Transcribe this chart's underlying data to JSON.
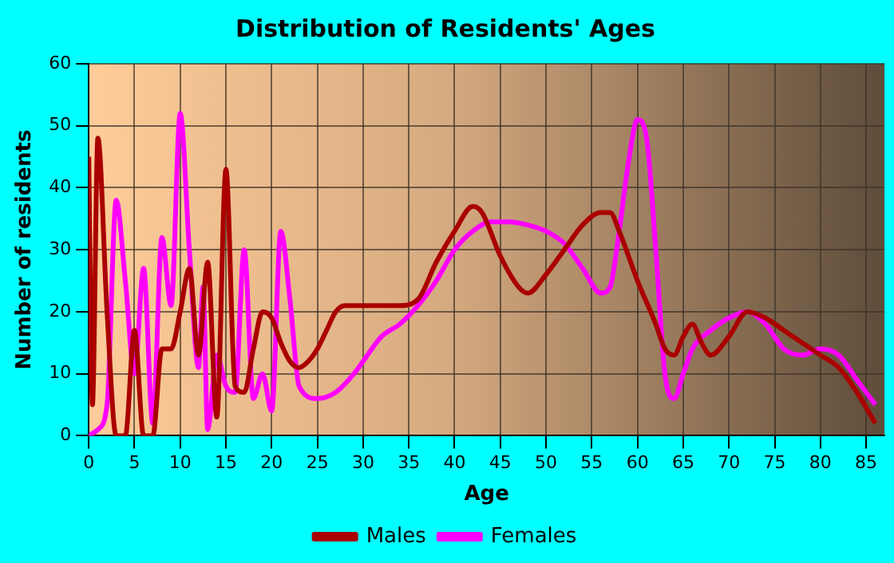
{
  "chart_data": {
    "type": "line",
    "title": "Distribution of Residents' Ages",
    "xlabel": "Age",
    "ylabel": "Number of residents",
    "xlim": [
      0,
      87
    ],
    "ylim": [
      0,
      60
    ],
    "xticks": [
      0,
      5,
      10,
      15,
      20,
      25,
      30,
      35,
      40,
      45,
      50,
      55,
      60,
      65,
      70,
      75,
      80,
      85
    ],
    "yticks": [
      0,
      10,
      20,
      30,
      40,
      50,
      60
    ],
    "grid": true,
    "legend": "bottom",
    "series": [
      {
        "name": "Males",
        "color": "#aa0000",
        "x": [
          0,
          0.4,
          1,
          2,
          3,
          4,
          5,
          6,
          7,
          8,
          9,
          10,
          11,
          12,
          13,
          14,
          15,
          16,
          17,
          18,
          19,
          20,
          21,
          22,
          23,
          24,
          25,
          26,
          27,
          28,
          30,
          34,
          36,
          38,
          40,
          42,
          43,
          45,
          47,
          48,
          50,
          52,
          54,
          56,
          57,
          58,
          60,
          62,
          63,
          64,
          65,
          66,
          67,
          68,
          70,
          72,
          74,
          76,
          78,
          80,
          82,
          84,
          86
        ],
        "values": [
          45,
          5,
          48,
          20,
          0,
          0,
          17,
          0,
          0,
          14,
          14,
          20,
          27,
          13,
          28,
          3,
          43,
          8,
          7,
          14,
          20,
          19,
          15,
          12,
          11,
          12,
          14,
          17,
          20,
          21,
          21,
          21,
          22,
          28,
          33,
          37,
          36,
          29,
          24,
          23,
          26,
          30,
          34,
          36,
          36,
          33,
          25,
          18,
          14,
          13,
          16,
          18,
          15,
          13,
          16,
          20,
          19,
          17,
          15,
          13,
          11,
          7,
          2
        ]
      },
      {
        "name": "Females",
        "color": "#ff00ff",
        "x": [
          0,
          1,
          2,
          3,
          4,
          5,
          6,
          7,
          8,
          9,
          10,
          11,
          12,
          12.5,
          13,
          14,
          15,
          16,
          17,
          18,
          19,
          20,
          21,
          22,
          23,
          25,
          27,
          29,
          30,
          32,
          34,
          36,
          38,
          40,
          42,
          44,
          46,
          48,
          50,
          52,
          54,
          56,
          57,
          58,
          59,
          60,
          61,
          62,
          63,
          64,
          65,
          66,
          68,
          70,
          72,
          74,
          76,
          78,
          80,
          82,
          84,
          86
        ],
        "values": [
          0,
          1,
          5,
          38,
          25,
          10,
          27,
          2,
          32,
          21,
          52,
          30,
          11,
          24,
          1,
          13,
          8,
          7,
          30,
          6,
          10,
          4,
          33,
          22,
          8,
          6,
          7,
          10,
          12,
          16,
          18,
          21,
          25,
          30,
          33,
          34.5,
          34.5,
          34,
          33,
          31,
          27,
          23,
          24,
          33,
          44,
          51,
          48,
          30,
          10,
          6,
          10,
          14,
          17,
          19,
          20,
          18,
          14,
          13,
          14,
          13,
          9,
          5
        ]
      }
    ]
  }
}
